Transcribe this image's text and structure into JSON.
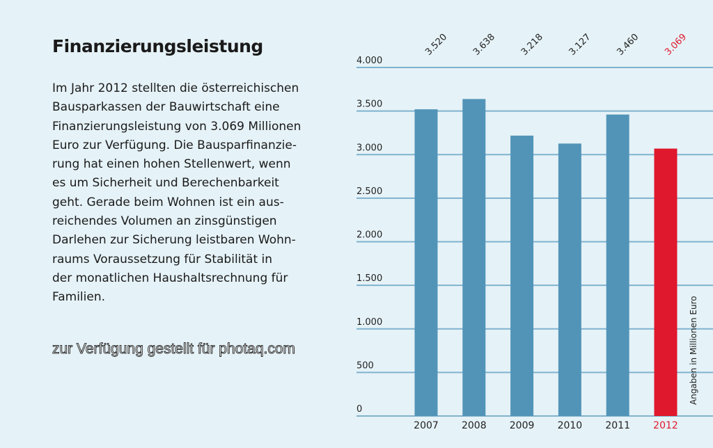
{
  "title": "Finanzierungsleistung",
  "paragraph_lines": [
    "Im Jahr 2012 stellten die österreichischen",
    "Bausparkassen der Bauwirtschaft eine",
    "Finanzierungsleistung von 3.069 Millionen",
    "Euro zur Verfügung. Die Bausparfinanzie-",
    "rung hat einen hohen Stellenwert, wenn",
    "es um Sicherheit und Berechenbarkeit",
    "geht. Gerade beim Wohnen ist ein aus-",
    "reichendes Volumen an zinsgünstigen",
    "Darlehen zur Sicherung leistbaren Wohn-",
    "raums Voraussetzung für Stabilität in",
    "der monatlichen Haushaltsrechnung für",
    "Familien."
  ],
  "watermark": "zur Verfügung gestellt für photaq.com",
  "chart_data": {
    "type": "bar",
    "title": "",
    "categories": [
      "2007",
      "2008",
      "2009",
      "2010",
      "2011",
      "2012"
    ],
    "values": [
      3520,
      3638,
      3218,
      3127,
      3460,
      3069
    ],
    "value_labels": [
      "3.520",
      "3.638",
      "3.218",
      "3.127",
      "3.460",
      "3.069"
    ],
    "highlight_index": 5,
    "ylabel": "Angaben in Millionen Euro",
    "xlabel": "",
    "ylim": [
      0,
      4000
    ],
    "yticks": [
      0,
      500,
      1000,
      1500,
      2000,
      2500,
      3000,
      3500,
      4000
    ],
    "ytick_labels": [
      "0",
      "500",
      "1.000",
      "1.500",
      "2.000",
      "2.500",
      "3.000",
      "3.500",
      "4.000"
    ],
    "grid": true,
    "colors": {
      "bar": "#5294b8",
      "highlight": "#e0182d",
      "grid": "#7fb3cf",
      "text": "#222222"
    }
  }
}
